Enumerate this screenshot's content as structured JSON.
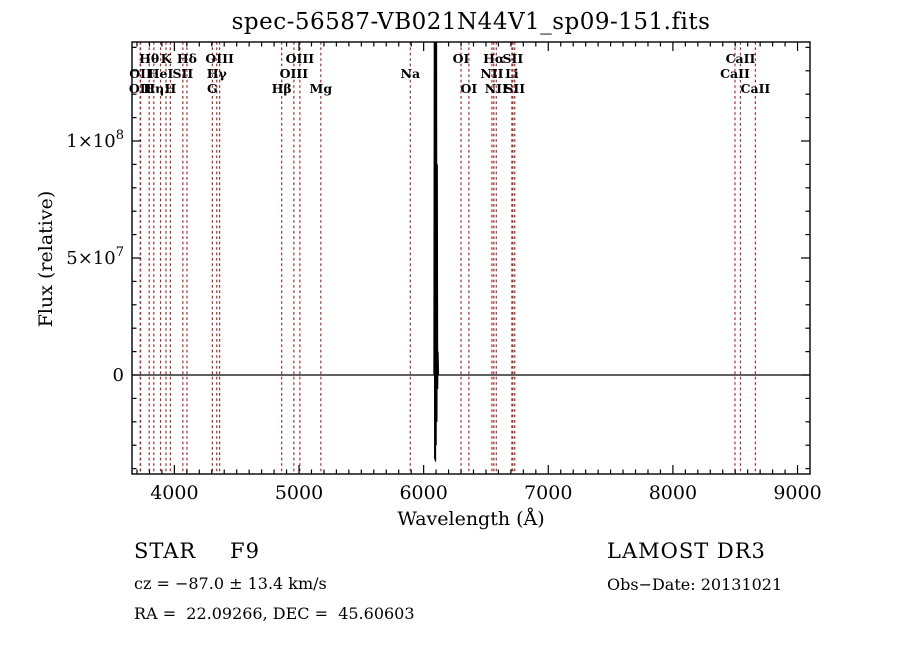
{
  "page_title": "spec-56587-VB021N44V1_sp09-151.fits",
  "chart_data": {
    "type": "line",
    "title": "spec-56587-VB021N44V1_sp09-151.fits",
    "xlabel": "Wavelength (Å)",
    "ylabel": "Flux (relative)",
    "xlim": [
      3660,
      9100
    ],
    "ylim": [
      -42300000,
      142300000
    ],
    "x_major_ticks": [
      4000,
      5000,
      6000,
      7000,
      8000,
      9000
    ],
    "x_minor_step": 100,
    "y_major_ticks": [
      {
        "value": 0,
        "label": "0"
      },
      {
        "value": 50000000,
        "label": "5×10^7"
      },
      {
        "value": 100000000,
        "label": "1×10^8"
      }
    ],
    "y_minor_step": 10000000,
    "grid": false,
    "axis_color": "#000000",
    "line_marker_color": "#9e2f2f",
    "spectral_lines": [
      {
        "wavelength": 3726,
        "label": "OII",
        "row": 3
      },
      {
        "wavelength": 3729,
        "label": "OII",
        "row": 2
      },
      {
        "wavelength": 3798,
        "label": "Hθ",
        "row": 1
      },
      {
        "wavelength": 3835,
        "label": "Hη",
        "row": 3
      },
      {
        "wavelength": 3889,
        "label": "HeI",
        "row": 2
      },
      {
        "wavelength": 3933,
        "label": "K",
        "row": 1
      },
      {
        "wavelength": 3968,
        "label": "H",
        "row": 3
      },
      {
        "wavelength": 4068,
        "label": "SII",
        "row": 2
      },
      {
        "wavelength": 4101,
        "label": "Hδ",
        "row": 1
      },
      {
        "wavelength": 4305,
        "label": "G",
        "row": 3
      },
      {
        "wavelength": 4340,
        "label": "Hγ",
        "row": 2
      },
      {
        "wavelength": 4363,
        "label": "OIII",
        "row": 1
      },
      {
        "wavelength": 4861,
        "label": "Hβ",
        "row": 3
      },
      {
        "wavelength": 4959,
        "label": "OIII",
        "row": 2
      },
      {
        "wavelength": 5007,
        "label": "OIII",
        "row": 1
      },
      {
        "wavelength": 5175,
        "label": "Mg",
        "row": 3
      },
      {
        "wavelength": 5893,
        "label": "Na",
        "row": 2
      },
      {
        "wavelength": 6300,
        "label": "OI",
        "row": 1
      },
      {
        "wavelength": 6363,
        "label": "OI",
        "row": 3
      },
      {
        "wavelength": 6548,
        "label": "NII",
        "row": 2
      },
      {
        "wavelength": 6563,
        "label": "Hα",
        "row": 1
      },
      {
        "wavelength": 6583,
        "label": "NII",
        "row": 3
      },
      {
        "wavelength": 6708,
        "label": "Li",
        "row": 2
      },
      {
        "wavelength": 6716,
        "label": "SII",
        "row": 1
      },
      {
        "wavelength": 6731,
        "label": "SII",
        "row": 3
      },
      {
        "wavelength": 8498,
        "label": "CaII",
        "row": 2
      },
      {
        "wavelength": 8542,
        "label": "CaII",
        "row": 1
      },
      {
        "wavelength": 8662,
        "label": "CaII",
        "row": 3
      }
    ],
    "spectrum": {
      "color": "#000000",
      "description": "flux flat at ~0 across band; strong narrow artifact spike near 6100 A clipped at plot top and dipping below zero",
      "points": [
        [
          3660,
          0
        ],
        [
          6083,
          0
        ],
        [
          6086,
          143000000
        ],
        [
          6089,
          -36000000
        ],
        [
          6092,
          143000000
        ],
        [
          6095,
          -37000000
        ],
        [
          6098,
          143000000
        ],
        [
          6100,
          -30000000
        ],
        [
          6103,
          143000000
        ],
        [
          6106,
          -20000000
        ],
        [
          6109,
          90000000
        ],
        [
          6112,
          -6000000
        ],
        [
          6115,
          10000000
        ],
        [
          6119,
          0
        ],
        [
          9100,
          0
        ]
      ]
    }
  },
  "footer": {
    "class_label": "STAR",
    "subclass_label": "F9",
    "cz_text": "cz = −87.0 ± 13.4 km/s",
    "radec_text": "RA =  22.09266, DEC =  45.60603",
    "survey_text": "LAMOST DR3",
    "obsdate_text": "Obs−Date: 20131021"
  }
}
